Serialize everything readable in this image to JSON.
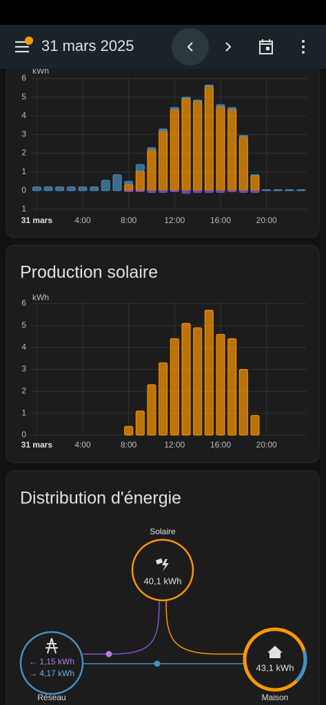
{
  "header": {
    "date": "31 mars 2025"
  },
  "chart_data": [
    {
      "type": "bar",
      "y_label": "kWh",
      "categories": [
        "31 mars",
        null,
        null,
        null,
        "4:00",
        null,
        null,
        null,
        "8:00",
        null,
        null,
        null,
        "12:00",
        null,
        null,
        null,
        "16:00",
        null,
        null,
        null,
        "20:00",
        null,
        null,
        null
      ],
      "series": [
        {
          "color": "#ff9800",
          "values": [
            0,
            0,
            0,
            0,
            0,
            0,
            0,
            0,
            0.35,
            1.05,
            2.2,
            3.2,
            4.35,
            4.95,
            4.8,
            5.6,
            4.5,
            4.35,
            2.9,
            0.8,
            0,
            0,
            0,
            0
          ]
        },
        {
          "color": "#488fc2",
          "values": [
            0.2,
            0.2,
            0.2,
            0.2,
            0.2,
            0.2,
            0.55,
            0.85,
            0.15,
            0.35,
            0.1,
            0.1,
            0.1,
            0.05,
            0.05,
            0.05,
            0.1,
            0.1,
            0.05,
            0.05,
            0.05,
            0.05,
            0.05,
            0.05
          ]
        },
        {
          "color": "#8353d1",
          "values": [
            0,
            0,
            0,
            0,
            0,
            0,
            0,
            0,
            -0.05,
            -0.05,
            -0.1,
            -0.1,
            -0.05,
            -0.15,
            -0.1,
            -0.1,
            -0.1,
            -0.05,
            -0.1,
            -0.1,
            0,
            0,
            0,
            0
          ]
        }
      ],
      "ylim": [
        -1,
        6
      ],
      "yticks": [
        {
          "value": -1,
          "label": "1"
        },
        0,
        1,
        2,
        3,
        4,
        5,
        6
      ],
      "grid": true
    },
    {
      "type": "bar",
      "title": "Production solaire",
      "y_label": "kWh",
      "categories": [
        "31 mars",
        null,
        null,
        null,
        "4:00",
        null,
        null,
        null,
        "8:00",
        null,
        null,
        null,
        "12:00",
        null,
        null,
        null,
        "16:00",
        null,
        null,
        null,
        "20:00",
        null,
        null,
        null
      ],
      "values": [
        0,
        0,
        0,
        0,
        0,
        0,
        0,
        0,
        0.4,
        1.1,
        2.3,
        3.3,
        4.4,
        5.1,
        4.9,
        5.7,
        4.6,
        4.4,
        3.0,
        0.9,
        0,
        0,
        0,
        0
      ],
      "color": "#ff9800",
      "ylim": [
        0,
        6
      ],
      "yticks": [
        0,
        1,
        2,
        3,
        4,
        5,
        6
      ],
      "grid": true
    }
  ],
  "distribution": {
    "title": "Distribution d'énergie",
    "solar": {
      "label": "Solaire",
      "value": "40,1 kWh"
    },
    "grid": {
      "label": "Réseau",
      "returned": "← 1,15 kWh",
      "consumed": "→ 4,17 kWh"
    },
    "home": {
      "label": "Maison",
      "value": "43,1 kWh"
    }
  }
}
